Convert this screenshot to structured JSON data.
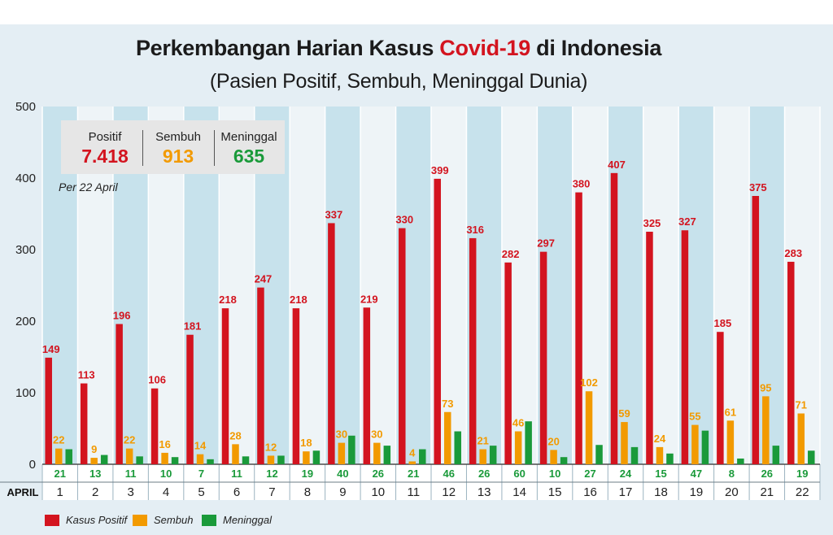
{
  "title": {
    "prefix": "Perkembangan Harian Kasus ",
    "highlight": "Covid-19",
    "suffix": " di Indonesia"
  },
  "subtitle": "(Pasien Positif, Sembuh, Meninggal Dunia)",
  "summary": {
    "items": [
      {
        "label": "Positif",
        "value": "7.418",
        "color": "#d3141f"
      },
      {
        "label": "Sembuh",
        "value": "913",
        "color": "#f29a00"
      },
      {
        "label": "Meninggal",
        "value": "635",
        "color": "#1a9a3a"
      }
    ],
    "date_note": "Per 22 April"
  },
  "legend": {
    "items": [
      {
        "label": "Kasus Positif",
        "color": "#d3141f"
      },
      {
        "label": "Sembuh",
        "color": "#f29a00"
      },
      {
        "label": "Meninggal",
        "color": "#1a9a3a"
      }
    ]
  },
  "chart_data": {
    "type": "bar",
    "xlabel": "APRIL",
    "ylabel": "",
    "ylim": [
      0,
      500
    ],
    "yticks": [
      0,
      100,
      200,
      300,
      400,
      500
    ],
    "grid": false,
    "legend_position": "bottom-left",
    "categories": [
      "1",
      "2",
      "3",
      "4",
      "5",
      "6",
      "7",
      "8",
      "9",
      "10",
      "11",
      "12",
      "13",
      "14",
      "15",
      "16",
      "17",
      "18",
      "19",
      "20",
      "21",
      "22"
    ],
    "series": [
      {
        "name": "Kasus Positif",
        "color": "#d3141f",
        "values": [
          149,
          113,
          196,
          106,
          181,
          218,
          247,
          218,
          337,
          219,
          330,
          399,
          316,
          282,
          297,
          380,
          407,
          325,
          327,
          185,
          375,
          283
        ]
      },
      {
        "name": "Sembuh",
        "color": "#f29a00",
        "values": [
          22,
          9,
          22,
          16,
          14,
          28,
          12,
          18,
          30,
          30,
          4,
          73,
          21,
          46,
          20,
          102,
          59,
          24,
          55,
          61,
          95,
          71
        ]
      },
      {
        "name": "Meninggal",
        "color": "#1a9a3a",
        "values": [
          21,
          13,
          11,
          10,
          7,
          11,
          12,
          19,
          40,
          26,
          21,
          46,
          26,
          60,
          10,
          27,
          24,
          15,
          47,
          8,
          26,
          19
        ]
      }
    ]
  }
}
